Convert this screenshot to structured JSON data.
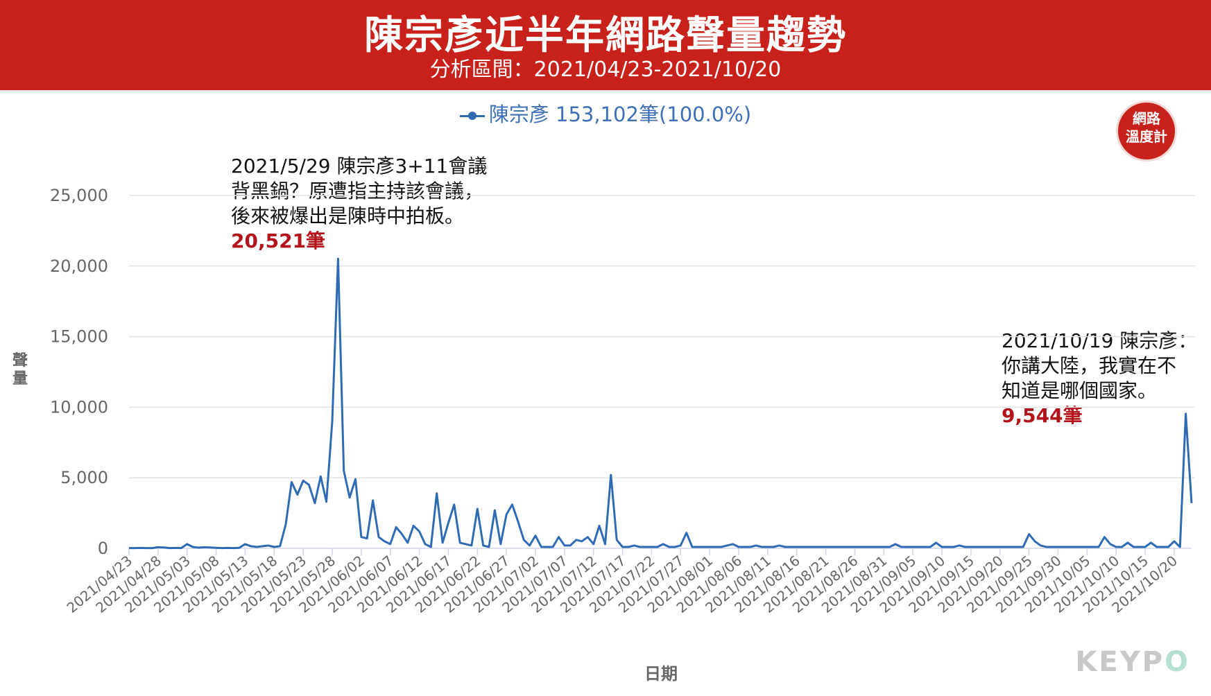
{
  "header": {
    "title": "陳宗彥近半年網路聲量趨勢",
    "subtitle": "分析區間：2021/04/23-2021/10/20"
  },
  "legend": {
    "label": "陳宗彥 153,102筆(100.0%)"
  },
  "badge": {
    "line1": "網路",
    "line2": "溫度計"
  },
  "annotations": [
    {
      "line1": "2021/5/29 陳宗彥3+11會議",
      "line2": "背黑鍋？原遭指主持該會議，",
      "line3": "後來被爆出是陳時中拍板。",
      "count": "20,521筆"
    },
    {
      "line1": "2021/10/19 陳宗彥：",
      "line2": "你講大陸，我實在不",
      "line3": "知道是哪個國家。",
      "count": "9,544筆"
    }
  ],
  "watermark": {
    "text1": "KEYP",
    "text2": "O"
  },
  "colors": {
    "banner": "#c8201a",
    "line": "#2f6bb4",
    "highlight": "#b3141b"
  },
  "chart_data": {
    "type": "line",
    "xlabel": "日期",
    "ylabel": "聲量",
    "ylim": [
      0,
      25000
    ],
    "yticks": [
      0,
      5000,
      10000,
      15000,
      20000,
      25000
    ],
    "ytick_labels": [
      "0",
      "5,000",
      "10,000",
      "15,000",
      "20,000",
      "25,000"
    ],
    "grid": true,
    "legend_position": "top-center",
    "x_start": "2021/04/23",
    "x_end": "2021/10/20",
    "xtick_labels": [
      "2021/04/23",
      "2021/04/28",
      "2021/05/03",
      "2021/05/08",
      "2021/05/13",
      "2021/05/18",
      "2021/05/23",
      "2021/05/28",
      "2021/06/02",
      "2021/06/07",
      "2021/06/12",
      "2021/06/17",
      "2021/06/22",
      "2021/06/27",
      "2021/07/02",
      "2021/07/07",
      "2021/07/12",
      "2021/07/17",
      "2021/07/22",
      "2021/07/27",
      "2021/08/01",
      "2021/08/06",
      "2021/08/11",
      "2021/08/16",
      "2021/08/21",
      "2021/08/26",
      "2021/08/31",
      "2021/09/05",
      "2021/09/10",
      "2021/09/15",
      "2021/09/20",
      "2021/09/25",
      "2021/09/30",
      "2021/10/05",
      "2021/10/10",
      "2021/10/15",
      "2021/10/20"
    ],
    "series": [
      {
        "name": "陳宗彥",
        "values": [
          20,
          20,
          30,
          20,
          20,
          80,
          60,
          20,
          30,
          20,
          300,
          100,
          50,
          80,
          60,
          40,
          20,
          30,
          20,
          40,
          300,
          150,
          100,
          150,
          200,
          100,
          150,
          1700,
          4700,
          3800,
          4800,
          4500,
          3200,
          5100,
          3300,
          9000,
          20521,
          5500,
          3600,
          4900,
          800,
          700,
          3400,
          800,
          500,
          300,
          1500,
          1000,
          400,
          1600,
          1200,
          300,
          100,
          3900,
          400,
          1800,
          3100,
          400,
          300,
          200,
          2800,
          200,
          100,
          2700,
          300,
          2400,
          3100,
          1900,
          600,
          200,
          900,
          100,
          100,
          100,
          800,
          200,
          200,
          600,
          500,
          800,
          300,
          1600,
          300,
          5200,
          600,
          100,
          100,
          200,
          100,
          100,
          100,
          100,
          300,
          100,
          100,
          200,
          1100,
          100,
          100,
          100,
          100,
          100,
          100,
          200,
          300,
          100,
          100,
          100,
          200,
          100,
          100,
          100,
          200,
          100,
          100,
          100,
          100,
          100,
          100,
          100,
          100,
          100,
          100,
          100,
          100,
          100,
          100,
          100,
          100,
          100,
          100,
          100,
          300,
          100,
          100,
          100,
          100,
          100,
          100,
          400,
          100,
          100,
          100,
          200,
          100,
          100,
          100,
          100,
          100,
          100,
          100,
          100,
          100,
          100,
          100,
          1000,
          500,
          200,
          100,
          100,
          100,
          100,
          100,
          100,
          100,
          100,
          100,
          100,
          800,
          300,
          100,
          100,
          400,
          100,
          100,
          100,
          400,
          100,
          100,
          100,
          500,
          100,
          9544,
          3200
        ]
      }
    ]
  }
}
